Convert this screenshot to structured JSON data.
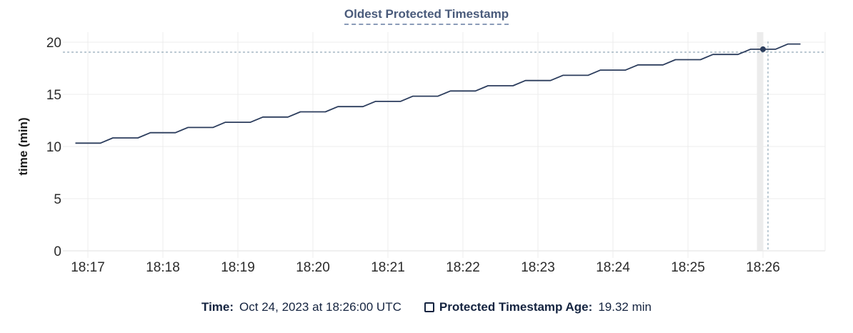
{
  "title": "Oldest Protected Timestamp",
  "footer": {
    "time_label": "Time:",
    "time_value": "Oct 24, 2023 at 18:26:00 UTC",
    "series_label": "Protected Timestamp Age:",
    "series_value": "19.32 min",
    "checkbox_checked": false
  },
  "colors": {
    "line": "#2c3d5d",
    "title": "#4a5b7b",
    "title_underline": "#8a9bb8",
    "footer_text": "#152440",
    "crosshair": "#93a9b8",
    "grid": "#ececec",
    "axis_line": "#e2e2e2",
    "tick_text": "#2b2b2b",
    "hover_band": "#ececec",
    "background": "#ffffff"
  },
  "chart_data": {
    "type": "line",
    "title": "Oldest Protected Timestamp",
    "xlabel": "",
    "ylabel": "time (min)",
    "ylim": [
      0,
      20
    ],
    "y_ticks": [
      0,
      5,
      10,
      15,
      20
    ],
    "x_ticks": [
      "18:17",
      "18:18",
      "18:19",
      "18:20",
      "18:21",
      "18:22",
      "18:23",
      "18:24",
      "18:25",
      "18:26"
    ],
    "grid": true,
    "legend_position": "bottom",
    "series": [
      {
        "name": "Protected Timestamp Age",
        "unit": "min",
        "t": [
          "18:16:50",
          "18:17:00",
          "18:17:10",
          "18:17:20",
          "18:17:30",
          "18:17:40",
          "18:17:50",
          "18:18:00",
          "18:18:10",
          "18:18:20",
          "18:18:30",
          "18:18:40",
          "18:18:50",
          "18:19:00",
          "18:19:10",
          "18:19:20",
          "18:19:30",
          "18:19:40",
          "18:19:50",
          "18:20:00",
          "18:20:10",
          "18:20:20",
          "18:20:30",
          "18:20:40",
          "18:20:50",
          "18:21:00",
          "18:21:10",
          "18:21:20",
          "18:21:30",
          "18:21:40",
          "18:21:50",
          "18:22:00",
          "18:22:10",
          "18:22:20",
          "18:22:30",
          "18:22:40",
          "18:22:50",
          "18:23:00",
          "18:23:10",
          "18:23:20",
          "18:23:30",
          "18:23:40",
          "18:23:50",
          "18:24:00",
          "18:24:10",
          "18:24:20",
          "18:24:30",
          "18:24:40",
          "18:24:50",
          "18:25:00",
          "18:25:10",
          "18:25:20",
          "18:25:30",
          "18:25:40",
          "18:25:50",
          "18:26:00",
          "18:26:10",
          "18:26:20",
          "18:26:30"
        ],
        "v": [
          10.32,
          10.32,
          10.32,
          10.82,
          10.82,
          10.82,
          11.32,
          11.32,
          11.32,
          11.82,
          11.82,
          11.82,
          12.32,
          12.32,
          12.32,
          12.82,
          12.82,
          12.82,
          13.32,
          13.32,
          13.32,
          13.82,
          13.82,
          13.82,
          14.32,
          14.32,
          14.32,
          14.82,
          14.82,
          14.82,
          15.32,
          15.32,
          15.32,
          15.82,
          15.82,
          15.82,
          16.32,
          16.32,
          16.32,
          16.82,
          16.82,
          16.82,
          17.32,
          17.32,
          17.32,
          17.82,
          17.82,
          17.82,
          18.32,
          18.32,
          18.32,
          18.82,
          18.82,
          18.82,
          19.32,
          19.32,
          19.32,
          19.82,
          19.82
        ]
      }
    ],
    "hover": {
      "t": "18:26:00",
      "v": 19.32,
      "time_display": "Oct 24, 2023 at 18:26:00 UTC",
      "value_display": "19.32 min",
      "cursor_t": "18:26:04",
      "cursor_v": 19.04
    }
  }
}
